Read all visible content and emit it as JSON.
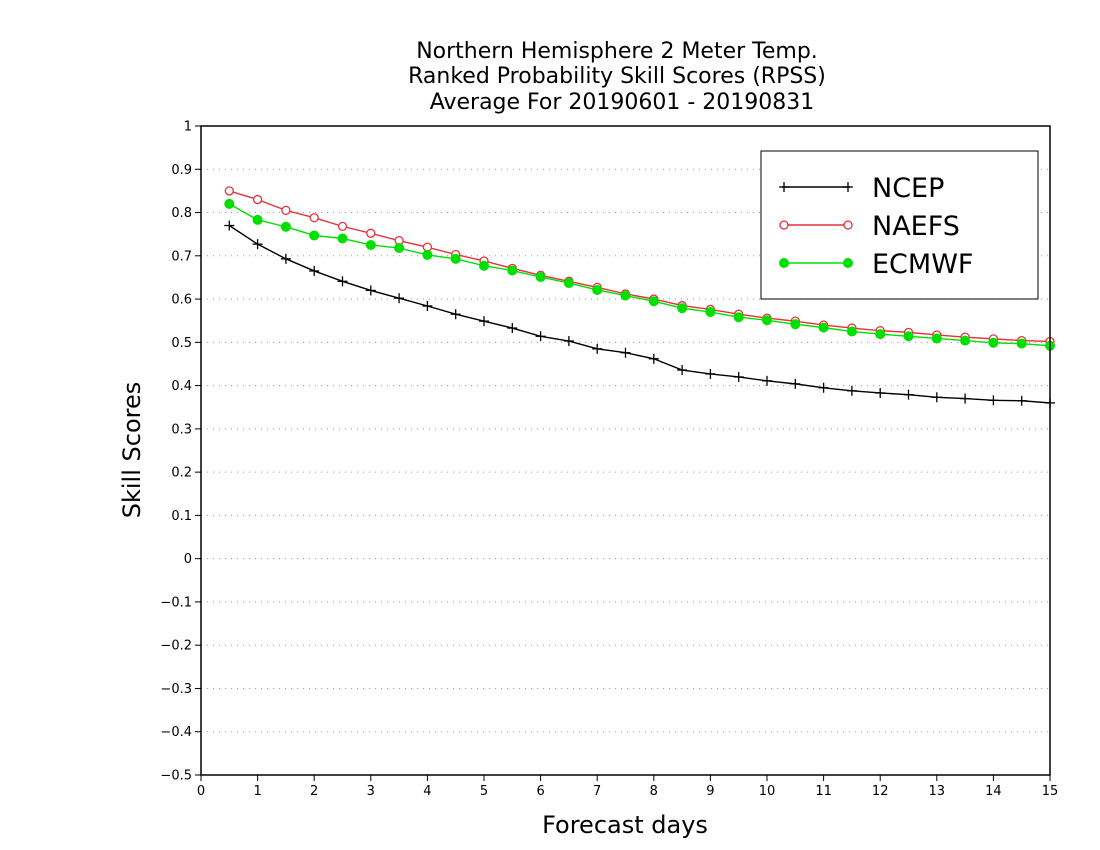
{
  "chart_data": {
    "type": "line",
    "title": [
      "Northern Hemisphere 2 Meter Temp.",
      "Ranked Probability Skill Scores (RPSS)",
      "Average For 20190601 - 20190831"
    ],
    "xlabel": "Forecast days",
    "ylabel": "Skill Scores",
    "xlim": [
      0,
      15
    ],
    "ylim": [
      -0.5,
      1
    ],
    "xticks": [
      "0",
      "1",
      "2",
      "3",
      "4",
      "5",
      "6",
      "7",
      "8",
      "9",
      "10",
      "11",
      "12",
      "13",
      "14",
      "15"
    ],
    "yticks": [
      "−0.5",
      "−0.4",
      "−0.3",
      "−0.2",
      "−0.1",
      "0",
      "0.1",
      "0.2",
      "0.3",
      "0.4",
      "0.5",
      "0.6",
      "0.7",
      "0.8",
      "0.9",
      "1"
    ],
    "grid": "horizontal dotted",
    "legend_position": "top-right",
    "x": [
      0.5,
      1,
      1.5,
      2,
      2.5,
      3,
      3.5,
      4,
      4.5,
      5,
      5.5,
      6,
      6.5,
      7,
      7.5,
      8,
      8.5,
      9,
      9.5,
      10,
      10.5,
      11,
      11.5,
      12,
      12.5,
      13,
      13.5,
      14,
      14.5,
      15
    ],
    "series": [
      {
        "name": "NCEP",
        "color": "#000000",
        "marker": "plus",
        "values": [
          0.77,
          0.727,
          0.693,
          0.665,
          0.641,
          0.62,
          0.602,
          0.584,
          0.565,
          0.549,
          0.533,
          0.514,
          0.503,
          0.485,
          0.476,
          0.462,
          0.436,
          0.427,
          0.42,
          0.411,
          0.404,
          0.395,
          0.388,
          0.383,
          0.379,
          0.373,
          0.37,
          0.366,
          0.365,
          0.36
        ]
      },
      {
        "name": "NAEFS",
        "color": "#e8303a",
        "marker": "open-circle",
        "values": [
          0.85,
          0.83,
          0.805,
          0.788,
          0.768,
          0.752,
          0.735,
          0.72,
          0.703,
          0.688,
          0.671,
          0.655,
          0.641,
          0.627,
          0.612,
          0.6,
          0.585,
          0.576,
          0.565,
          0.556,
          0.549,
          0.54,
          0.533,
          0.527,
          0.523,
          0.517,
          0.512,
          0.508,
          0.504,
          0.502
        ]
      },
      {
        "name": "ECMWF",
        "color": "#00e000",
        "marker": "filled-circle",
        "values": [
          0.82,
          0.783,
          0.767,
          0.747,
          0.74,
          0.725,
          0.718,
          0.702,
          0.693,
          0.677,
          0.666,
          0.651,
          0.637,
          0.621,
          0.608,
          0.595,
          0.579,
          0.57,
          0.558,
          0.551,
          0.542,
          0.534,
          0.525,
          0.519,
          0.514,
          0.509,
          0.504,
          0.499,
          0.497,
          0.492
        ]
      }
    ]
  }
}
